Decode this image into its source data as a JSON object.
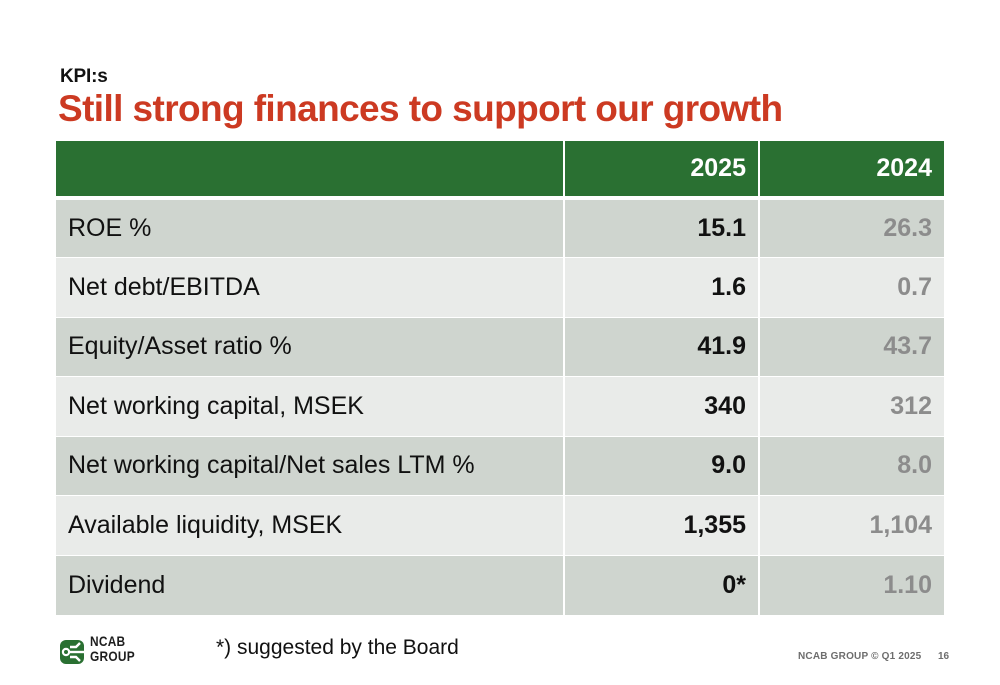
{
  "header": {
    "kicker": "KPI:s",
    "title": "Still strong finances to support our growth"
  },
  "table": {
    "columns": [
      "",
      "2025",
      "2024"
    ],
    "rows": [
      {
        "label": "ROE %",
        "v2025": "15.1",
        "v2024": "26.3"
      },
      {
        "label": "Net debt/EBITDA",
        "v2025": "1.6",
        "v2024": "0.7"
      },
      {
        "label": "Equity/Asset ratio %",
        "v2025": "41.9",
        "v2024": "43.7"
      },
      {
        "label": "Net working capital, MSEK",
        "v2025": "340",
        "v2024": "312"
      },
      {
        "label": "Net working capital/Net sales LTM %",
        "v2025": "9.0",
        "v2024": "8.0"
      },
      {
        "label": "Available liquidity, MSEK",
        "v2025": "1,355",
        "v2024": "1,104"
      },
      {
        "label": "Dividend",
        "v2025": "0*",
        "v2024": "1.10"
      }
    ]
  },
  "footer": {
    "logo_line1": "NCAB",
    "logo_line2": "GROUP",
    "footnote": "*) suggested by the Board",
    "meta": "NCAB GROUP © Q1 2025",
    "page_number": "16"
  },
  "colors": {
    "title": "#cc3a22",
    "header_bg": "#2a7032",
    "row_dark": "#cfd5cf",
    "row_light": "#e9ebe9",
    "prev_year_text": "#8c8c8c"
  }
}
